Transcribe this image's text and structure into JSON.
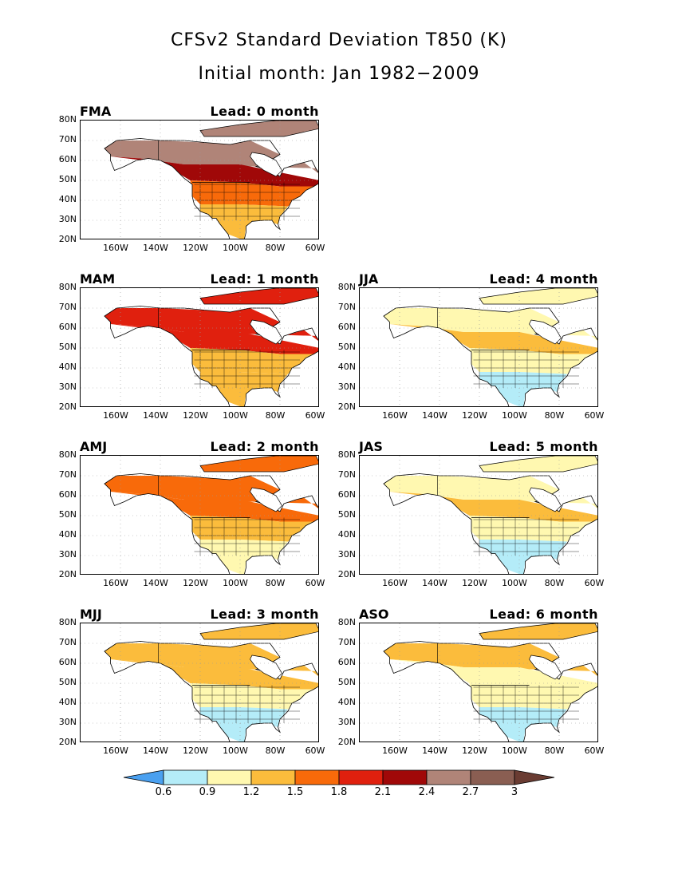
{
  "title": "CFSv2 Standard Deviation T850 (K)",
  "subtitle": "Initial month: Jan 1982−2009",
  "lat_labels": [
    "80N",
    "70N",
    "60N",
    "50N",
    "40N",
    "30N",
    "20N"
  ],
  "lon_labels": [
    "160W",
    "140W",
    "120W",
    "100W",
    "80W",
    "60W"
  ],
  "panels": [
    {
      "season": "FMA",
      "lead": "Lead: 0 month",
      "level": 4
    },
    {
      "season": "MAM",
      "lead": "Lead: 1 month",
      "level": 3
    },
    {
      "season": "AMJ",
      "lead": "Lead: 2 month",
      "level": 2
    },
    {
      "season": "MJJ",
      "lead": "Lead: 3 month",
      "level": 1
    },
    {
      "season": "JJA",
      "lead": "Lead: 4 month",
      "level": 0
    },
    {
      "season": "JAS",
      "lead": "Lead: 5 month",
      "level": 0
    },
    {
      "season": "ASO",
      "lead": "Lead: 6 month",
      "level": 0.5
    }
  ],
  "colorbar": {
    "labels": [
      "0.6",
      "0.9",
      "1.2",
      "1.5",
      "1.8",
      "2.1",
      "2.4",
      "2.7",
      "3"
    ],
    "colors": [
      "#4aa0f0",
      "#b4ecf8",
      "#fff8b0",
      "#fbbc3c",
      "#f86a0a",
      "#e0200e",
      "#a00808",
      "#b08478",
      "#8a5e52",
      "#6a3c32"
    ]
  }
}
